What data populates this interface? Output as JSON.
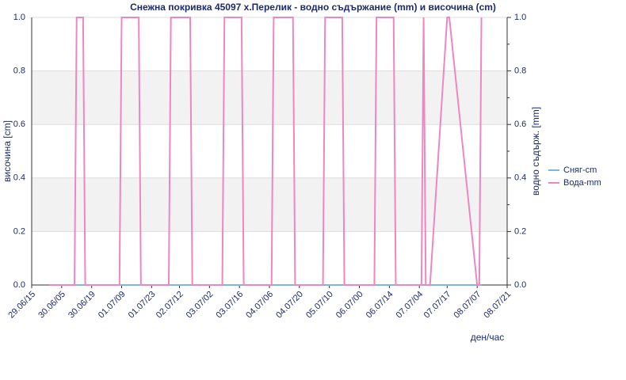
{
  "chart_data": {
    "type": "line",
    "title": "Снежна покривка 45097 х.Перелик  - водно съдържание (mm) и височина (cm)",
    "x_label": "ден/час",
    "y_label": "височина [cm]",
    "y2_label": "водно съдърж. [mm]",
    "xlim": [
      0,
      222
    ],
    "xticks": [
      {
        "value": 0,
        "label": "29.06/15"
      },
      {
        "value": 14,
        "label": "30.06/05"
      },
      {
        "value": 28,
        "label": "30.06/19"
      },
      {
        "value": 42,
        "label": "01.07/09"
      },
      {
        "value": 56,
        "label": "01.07/23"
      },
      {
        "value": 69,
        "label": "02.07/12"
      },
      {
        "value": 83,
        "label": "03.07/02"
      },
      {
        "value": 97,
        "label": "03.07/16"
      },
      {
        "value": 111,
        "label": "04.07/06"
      },
      {
        "value": 125,
        "label": "04.07/20"
      },
      {
        "value": 139,
        "label": "05.07/10"
      },
      {
        "value": 153,
        "label": "06.07/00"
      },
      {
        "value": 167,
        "label": "06.07/14"
      },
      {
        "value": 181,
        "label": "07.07/04"
      },
      {
        "value": 194,
        "label": "07.07/17"
      },
      {
        "value": 208,
        "label": "08.07/07"
      },
      {
        "value": 222,
        "label": "08.07/21"
      }
    ],
    "ylim": [
      0,
      1
    ],
    "yticks": [
      {
        "value": 0,
        "label": "0.0"
      },
      {
        "value": 0.2,
        "label": "0.2"
      },
      {
        "value": 0.4,
        "label": "0.4"
      },
      {
        "value": 0.6,
        "label": "0.6"
      },
      {
        "value": 0.8,
        "label": "0.8"
      },
      {
        "value": 1,
        "label": "1.0"
      }
    ],
    "y2lim": [
      0,
      1
    ],
    "y2ticks": [
      {
        "value": 0,
        "label": "0.0"
      },
      {
        "value": 0.2,
        "label": "0.2"
      },
      {
        "value": 0.4,
        "label": "0.4"
      },
      {
        "value": 0.6,
        "label": "0.6"
      },
      {
        "value": 0.8,
        "label": "0.8"
      },
      {
        "value": 1,
        "label": "1.0"
      }
    ],
    "legend": "right",
    "series": [
      {
        "name": "Сняг-cm",
        "color": "#7db6e6",
        "x": [
          8,
          210
        ],
        "values": [
          0,
          0
        ]
      },
      {
        "name": "Вода-mm",
        "color": "#ee86c2",
        "axis": "y2",
        "x": [
          8,
          20,
          21,
          24,
          25,
          41,
          42,
          50,
          51,
          64,
          65,
          74,
          75,
          89,
          90,
          98,
          99,
          112,
          113,
          122,
          123,
          136,
          137,
          145,
          146,
          160,
          161,
          169,
          170,
          182,
          183,
          184,
          186,
          194,
          195,
          208,
          209,
          210
        ],
        "values": [
          0,
          0,
          1,
          1,
          0,
          0,
          1,
          1,
          0,
          0,
          1,
          1,
          0,
          0,
          1,
          1,
          0,
          0,
          1,
          1,
          0,
          0,
          1,
          1,
          0,
          0,
          1,
          1,
          0,
          0,
          1,
          0,
          0,
          1,
          1,
          0,
          0,
          1
        ]
      }
    ]
  }
}
